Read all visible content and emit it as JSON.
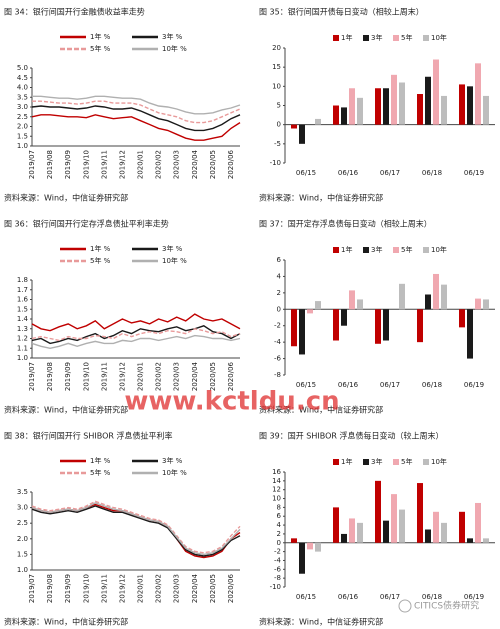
{
  "chart_data": [
    {
      "type": "line",
      "title": "图 34：银行间国开行金融债收益率走势",
      "source": "资料来源：Wind，中信证券研究部",
      "categories": [
        "2019/07",
        null,
        "2019/08",
        null,
        "2019/09",
        null,
        "2019/10",
        null,
        "2019/11",
        null,
        "2019/12",
        null,
        "2020/01",
        null,
        "2020/02",
        null,
        "2020/03",
        null,
        "2020/04",
        null,
        "2020/05",
        null,
        "2020/06",
        null
      ],
      "series": [
        {
          "name": "1年 %",
          "color": "#c00000",
          "dashed": false,
          "values": [
            2.5,
            2.6,
            2.6,
            2.55,
            2.5,
            2.5,
            2.45,
            2.6,
            2.5,
            2.4,
            2.45,
            2.5,
            2.3,
            2.1,
            1.9,
            1.8,
            1.6,
            1.4,
            1.3,
            1.3,
            1.4,
            1.5,
            1.9,
            2.2
          ]
        },
        {
          "name": "3年 %",
          "color": "#1a1a1a",
          "dashed": false,
          "values": [
            3.0,
            3.05,
            3.0,
            3.0,
            2.95,
            2.9,
            2.95,
            3.05,
            3.0,
            2.9,
            2.9,
            2.95,
            2.8,
            2.6,
            2.4,
            2.3,
            2.1,
            1.9,
            1.8,
            1.8,
            1.9,
            2.1,
            2.4,
            2.6
          ]
        },
        {
          "name": "5年 %",
          "color": "#e89a9a",
          "dashed": true,
          "values": [
            3.3,
            3.3,
            3.25,
            3.2,
            3.2,
            3.15,
            3.2,
            3.3,
            3.3,
            3.2,
            3.2,
            3.2,
            3.1,
            2.9,
            2.7,
            2.6,
            2.5,
            2.3,
            2.2,
            2.2,
            2.3,
            2.5,
            2.7,
            2.9
          ]
        },
        {
          "name": "10年 %",
          "color": "#b0b0b0",
          "dashed": false,
          "values": [
            3.55,
            3.55,
            3.5,
            3.45,
            3.45,
            3.4,
            3.45,
            3.55,
            3.55,
            3.5,
            3.45,
            3.45,
            3.4,
            3.2,
            3.05,
            3.0,
            2.9,
            2.75,
            2.65,
            2.65,
            2.7,
            2.85,
            2.95,
            3.1
          ]
        }
      ],
      "ylim": [
        1,
        5
      ],
      "yticks": [
        {
          "value": 5,
          "label": "5.0"
        },
        4.5,
        {
          "value": 4,
          "label": "4.0"
        },
        3.5,
        {
          "value": 3,
          "label": "3.0"
        },
        2.5,
        {
          "value": 2,
          "label": "2.0"
        },
        1.5,
        {
          "value": 1,
          "label": "1.0"
        }
      ]
    },
    {
      "type": "bar",
      "title": "图 35：银行间国开债每日变动（相较上周末）",
      "source": "资料来源：Wind，中信证券研究部",
      "categories": [
        "06/15",
        "06/16",
        "06/17",
        "06/18",
        "06/19"
      ],
      "series": [
        {
          "name": "1年",
          "color": "#c00000",
          "values": [
            -1,
            5,
            9.5,
            8,
            10.5
          ]
        },
        {
          "name": "3年",
          "color": "#1a1a1a",
          "values": [
            -5,
            4.5,
            9.5,
            12.5,
            10
          ]
        },
        {
          "name": "5年",
          "color": "#f0a8b0",
          "values": [
            0,
            9.5,
            13,
            17,
            16
          ]
        },
        {
          "name": "10年",
          "color": "#bdbdbd",
          "values": [
            1.5,
            7,
            11,
            7.5,
            7.5
          ]
        }
      ],
      "ylim": [
        -10,
        20
      ],
      "yticks": [
        20,
        15,
        10,
        5,
        0,
        -5,
        -10
      ]
    },
    {
      "type": "line",
      "title": "图 36：银行间国开行定存浮息债扯平利率走势",
      "source": "资料来源：Wind，中信证券研究部",
      "categories": [
        "2019/07",
        null,
        "2019/08",
        null,
        "2019/09",
        null,
        "2019/10",
        null,
        "2019/11",
        null,
        "2019/12",
        null,
        "2020/01",
        null,
        "2020/02",
        null,
        "2020/03",
        null,
        "2020/04",
        null,
        "2020/05",
        null,
        "2020/06",
        null
      ],
      "series": [
        {
          "name": "1年 %",
          "color": "#c00000",
          "dashed": false,
          "values": [
            1.35,
            1.3,
            1.28,
            1.32,
            1.35,
            1.3,
            1.33,
            1.38,
            1.3,
            1.35,
            1.4,
            1.36,
            1.38,
            1.35,
            1.4,
            1.37,
            1.42,
            1.38,
            1.45,
            1.4,
            1.38,
            1.4,
            1.35,
            1.3
          ]
        },
        {
          "name": "3年 %",
          "color": "#1a1a1a",
          "dashed": false,
          "values": [
            1.18,
            1.2,
            1.15,
            1.17,
            1.2,
            1.18,
            1.22,
            1.25,
            1.2,
            1.23,
            1.28,
            1.25,
            1.3,
            1.28,
            1.27,
            1.3,
            1.32,
            1.28,
            1.3,
            1.33,
            1.27,
            1.25,
            1.2,
            1.25
          ]
        },
        {
          "name": "5年 %",
          "color": "#e89a9a",
          "dashed": true,
          "values": [
            1.2,
            1.22,
            1.2,
            1.18,
            1.22,
            1.2,
            1.2,
            1.23,
            1.22,
            1.2,
            1.25,
            1.22,
            1.25,
            1.27,
            1.25,
            1.28,
            1.27,
            1.25,
            1.3,
            1.28,
            1.25,
            1.27,
            1.22,
            1.25
          ]
        },
        {
          "name": "10年 %",
          "color": "#b0b0b0",
          "dashed": false,
          "values": [
            1.15,
            1.12,
            1.1,
            1.12,
            1.15,
            1.12,
            1.15,
            1.17,
            1.15,
            1.15,
            1.18,
            1.17,
            1.2,
            1.2,
            1.18,
            1.2,
            1.22,
            1.2,
            1.23,
            1.22,
            1.2,
            1.2,
            1.18,
            1.2
          ]
        }
      ],
      "ylim": [
        1,
        1.8
      ],
      "yticks": [
        1.8,
        1.7,
        1.6,
        1.5,
        1.4,
        1.3,
        1.2,
        1.1,
        {
          "value": 1,
          "label": "1.0"
        }
      ]
    },
    {
      "type": "bar",
      "title": "图 37：国开定存浮息债每日变动（相较上周末）",
      "source": "资料来源：Wind，中信证券研究部",
      "categories": [
        "06/15",
        "06/16",
        "06/17",
        "06/18",
        "06/19"
      ],
      "series": [
        {
          "name": "1年",
          "color": "#c00000",
          "values": [
            -4.5,
            -3.8,
            -4.2,
            -4,
            -2.2
          ]
        },
        {
          "name": "3年",
          "color": "#1a1a1a",
          "values": [
            -5.5,
            -2,
            -3.8,
            1.8,
            -6
          ]
        },
        {
          "name": "5年",
          "color": "#f0a8b0",
          "values": [
            -0.5,
            2.3,
            0,
            4.3,
            1.3
          ]
        },
        {
          "name": "10年",
          "color": "#bdbdbd",
          "values": [
            1,
            1.2,
            3.1,
            3,
            1.2
          ]
        }
      ],
      "ylim": [
        -8,
        6
      ],
      "yticks": [
        6,
        4,
        2,
        0,
        -2,
        -4,
        -6,
        -8
      ]
    },
    {
      "type": "line",
      "title": "图 38：银行间国开行 SHIBOR 浮息债扯平利率",
      "source": "资料来源：Wind，中信证券研究部",
      "categories": [
        "2019/07",
        null,
        "2019/08",
        null,
        "2019/09",
        null,
        "2019/10",
        null,
        "2019/11",
        null,
        "2019/12",
        null,
        "2020/01",
        null,
        "2020/02",
        null,
        "2020/03",
        null,
        "2020/04",
        null,
        "2020/05",
        null,
        "2020/06",
        null
      ],
      "series": [
        {
          "name": "1年 %",
          "color": "#c00000",
          "dashed": false,
          "values": [
            3.0,
            2.9,
            2.85,
            2.9,
            2.95,
            2.9,
            3.0,
            3.1,
            3.0,
            2.9,
            2.9,
            2.8,
            2.7,
            2.6,
            2.55,
            2.4,
            2.0,
            1.6,
            1.45,
            1.4,
            1.45,
            1.6,
            2.0,
            2.2
          ]
        },
        {
          "name": "3年 %",
          "color": "#1a1a1a",
          "dashed": false,
          "values": [
            2.95,
            2.85,
            2.8,
            2.85,
            2.9,
            2.85,
            2.95,
            3.05,
            2.95,
            2.85,
            2.85,
            2.75,
            2.65,
            2.55,
            2.5,
            2.35,
            2.0,
            1.65,
            1.5,
            1.45,
            1.5,
            1.65,
            1.95,
            2.1
          ]
        },
        {
          "name": "5年 %",
          "color": "#e89a9a",
          "dashed": true,
          "values": [
            3.05,
            2.95,
            2.9,
            2.95,
            3.0,
            2.95,
            3.05,
            3.2,
            3.1,
            3.0,
            2.95,
            2.85,
            2.75,
            2.65,
            2.6,
            2.45,
            2.1,
            1.75,
            1.6,
            1.55,
            1.6,
            1.75,
            2.1,
            2.4
          ]
        },
        {
          "name": "10年 %",
          "color": "#b0b0b0",
          "dashed": false,
          "values": [
            3.0,
            2.9,
            2.85,
            2.9,
            2.95,
            2.9,
            3.0,
            3.15,
            3.05,
            2.95,
            2.9,
            2.8,
            2.7,
            2.6,
            2.55,
            2.4,
            2.05,
            1.7,
            1.55,
            1.5,
            1.55,
            1.7,
            2.0,
            2.3
          ]
        }
      ],
      "ylim": [
        1,
        3.5
      ],
      "yticks": [
        3.5,
        {
          "value": 3,
          "label": "3.0"
        },
        2.5,
        {
          "value": 2,
          "label": "2.0"
        },
        1.5,
        {
          "value": 1,
          "label": "1.0"
        }
      ]
    },
    {
      "type": "bar",
      "title": "图 39：国开 SHIBOR 浮息债每日变动（较上周末）",
      "source": "资料来源：Wind，中信证券研究部",
      "categories": [
        "06/15",
        "06/16",
        "06/17",
        "06/18",
        "06/19"
      ],
      "series": [
        {
          "name": "1年",
          "color": "#c00000",
          "values": [
            1,
            8,
            14,
            13.5,
            7
          ]
        },
        {
          "name": "3年",
          "color": "#1a1a1a",
          "values": [
            -7,
            2,
            5,
            3,
            1
          ]
        },
        {
          "name": "5年",
          "color": "#f0a8b0",
          "values": [
            -1.5,
            5.5,
            11,
            7,
            9
          ]
        },
        {
          "name": "10年",
          "color": "#bdbdbd",
          "values": [
            -2,
            4.5,
            7.5,
            4.5,
            1
          ]
        }
      ],
      "ylim": [
        -10,
        16
      ],
      "yticks": [
        16,
        14,
        12,
        10,
        8,
        6,
        4,
        2,
        0,
        -2,
        -4,
        -6,
        -8,
        -10
      ]
    }
  ],
  "watermarks": [
    "www.kctldu.cn",
    "CITICS债券研究"
  ]
}
